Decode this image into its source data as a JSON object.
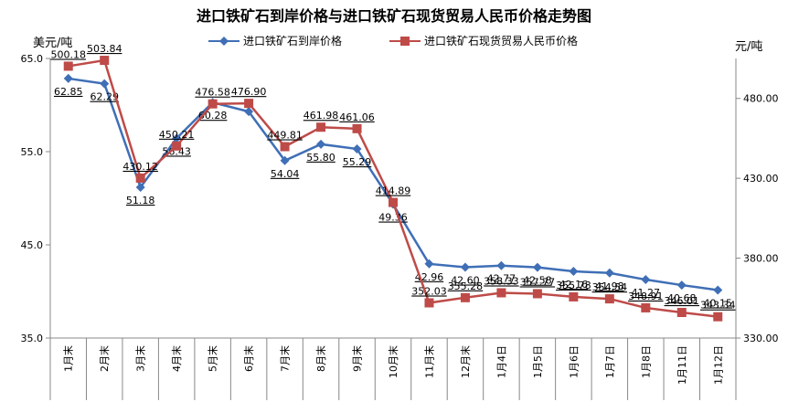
{
  "chart_data": {
    "type": "line",
    "title": "进口铁矿石到岸价格与进口铁矿石现货贸易人民币价格走势图",
    "ylabel": "美元/吨",
    "y2label": "元/吨",
    "categories": [
      "1月末",
      "2月末",
      "3月末",
      "4月末",
      "5月末",
      "6月末",
      "7月末",
      "8月末",
      "9月末",
      "10月末",
      "11月末",
      "12月末",
      "1月4日",
      "1月5日",
      "1月6日",
      "1月7日",
      "1月8日",
      "1月11日",
      "1月12日"
    ],
    "ylim": [
      35,
      65
    ],
    "y2lim": [
      330,
      505
    ],
    "yticks": [
      "35.0",
      "45.0",
      "55.0",
      "65.0"
    ],
    "y2ticks": [
      "330.00",
      "380.00",
      "430.00",
      "480.00"
    ],
    "series": [
      {
        "name": "进口铁矿石到岸价格",
        "axis": "left",
        "color": "#3f6fb6",
        "marker": "diamond",
        "values": [
          62.85,
          62.29,
          51.18,
          56.43,
          60.28,
          59.3,
          54.04,
          55.8,
          55.29,
          49.36,
          42.96,
          42.6,
          42.77,
          42.58,
          42.16,
          41.98,
          41.27,
          40.68,
          40.15
        ],
        "labels": [
          "62.85",
          "62.29",
          "51.18",
          "56.43",
          "60.28",
          "",
          "54.04",
          "55.80",
          "55.29",
          "49.36",
          "42.96",
          "42.60",
          "42.77",
          "42.58",
          "42.16",
          "41.98",
          "41.27",
          "40.68",
          "40.15"
        ]
      },
      {
        "name": "进口铁矿石现货贸易人民币价格",
        "axis": "right",
        "color": "#be4b48",
        "marker": "square",
        "values": [
          500.18,
          503.84,
          430.12,
          450.21,
          476.58,
          476.9,
          449.81,
          461.98,
          461.06,
          414.89,
          352.03,
          355.28,
          358.33,
          357.77,
          355.78,
          354.54,
          348.91,
          346.01,
          343.34
        ],
        "labels": [
          "500.18",
          "503.84",
          "430.12",
          "450.21",
          "476.58",
          "476.90",
          "449.81",
          "461.98",
          "461.06",
          "414.89",
          "352.03",
          "355.28",
          "358.33",
          "357.77",
          "355.78",
          "354.54",
          "348.91",
          "346.01",
          "343.34"
        ]
      }
    ],
    "grid": false,
    "legend": "top"
  }
}
